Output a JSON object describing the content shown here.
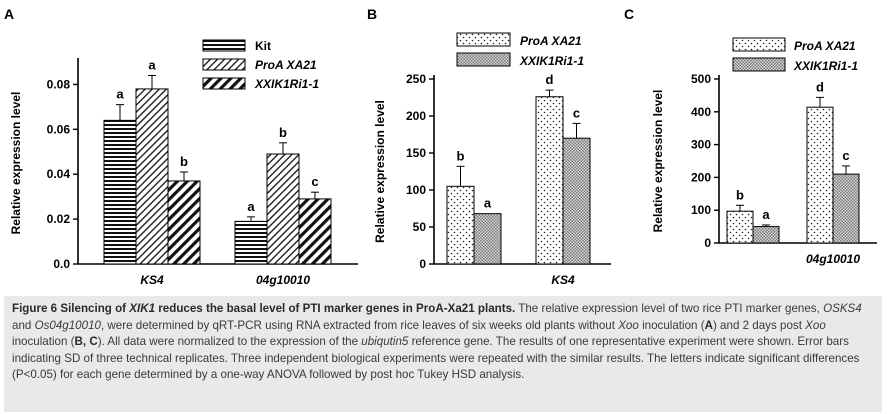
{
  "chart_data": [
    {
      "panel": "A",
      "type": "bar",
      "ylabel": "Relative expression level",
      "ylim": [
        0.0,
        0.09
      ],
      "yticks": [
        "0.0",
        "0.02",
        "0.04",
        "0.06",
        "0.08"
      ],
      "categories": [
        "KS4",
        "04g10010"
      ],
      "legend_position": "top-right",
      "series": [
        {
          "name": "Kit",
          "pattern": "horizontal-lines",
          "values": [
            0.064,
            0.019
          ],
          "errors": [
            0.007,
            0.002
          ],
          "letters": [
            "a",
            "a"
          ]
        },
        {
          "name": "ProA XA21",
          "pattern": "diagonal-lines",
          "values": [
            0.078,
            0.049
          ],
          "errors": [
            0.006,
            0.005
          ],
          "letters": [
            "a",
            "b"
          ]
        },
        {
          "name": "XXIK1Ri1-1",
          "pattern": "thick-diagonal",
          "values": [
            0.037,
            0.029
          ],
          "errors": [
            0.004,
            0.003
          ],
          "letters": [
            "b",
            "c"
          ]
        }
      ]
    },
    {
      "panel": "B",
      "type": "bar",
      "ylabel": "Relative expression level",
      "ylim": [
        0,
        250
      ],
      "yticks": [
        "0",
        "50",
        "100",
        "150",
        "200",
        "250"
      ],
      "categories": [
        "",
        "KS4"
      ],
      "legend_position": "top-right",
      "series": [
        {
          "name": "ProA XA21",
          "pattern": "dots",
          "values": [
            105,
            226
          ],
          "errors": [
            27,
            9
          ],
          "letters": [
            "b",
            "d"
          ]
        },
        {
          "name": "XXIK1Ri1-1",
          "pattern": "crosshatch",
          "values": [
            68,
            170
          ],
          "errors": [
            0,
            20
          ],
          "letters": [
            "a",
            "c"
          ]
        }
      ]
    },
    {
      "panel": "C",
      "type": "bar",
      "ylabel": "Relative expression level",
      "ylim": [
        0,
        500
      ],
      "yticks": [
        "0",
        "100",
        "200",
        "300",
        "400",
        "500"
      ],
      "categories": [
        "",
        "04g10010"
      ],
      "legend_position": "top-right",
      "series": [
        {
          "name": "ProA XA21",
          "pattern": "dots",
          "values": [
            97,
            414
          ],
          "errors": [
            18,
            30
          ],
          "letters": [
            "b",
            "d"
          ]
        },
        {
          "name": "XXIK1Ri1-1",
          "pattern": "crosshatch",
          "values": [
            50,
            210
          ],
          "errors": [
            5,
            25
          ],
          "letters": [
            "a",
            "c"
          ]
        }
      ]
    }
  ],
  "caption": {
    "figure_label": "Figure 6",
    "title_pre": "Silencing of ",
    "title_gene": "XIK1",
    "title_post": " reduces the basal level of PTI marker genes in ProA-Xa21 plants.",
    "t1": "The relative expression level of two rice PTI marker genes, ",
    "g1": "OSKS4",
    "t2": " and ",
    "g2": "Os04g10010",
    "t3": ", were determined by qRT-PCR using RNA extracted from rice leaves of six weeks old plants without ",
    "g3": "Xoo",
    "t4": " inoculation (",
    "p1": "A",
    "t5": ") and 2 days post ",
    "g4": "Xoo",
    "t6": " inoculation (",
    "p2": "B, C",
    "t7": "). All data were normalized to the expression of the ",
    "g5": "ubiqutin5",
    "t8": " reference gene. The results of one representative experiment were shown. Error bars indicating SD of three technical replicates. Three independent biological experiments were repeated with the similar results. The letters indicate significant differences (P<0.05) for each gene determined by a one-way ANOVA followed by post hoc Tukey HSD analysis."
  }
}
